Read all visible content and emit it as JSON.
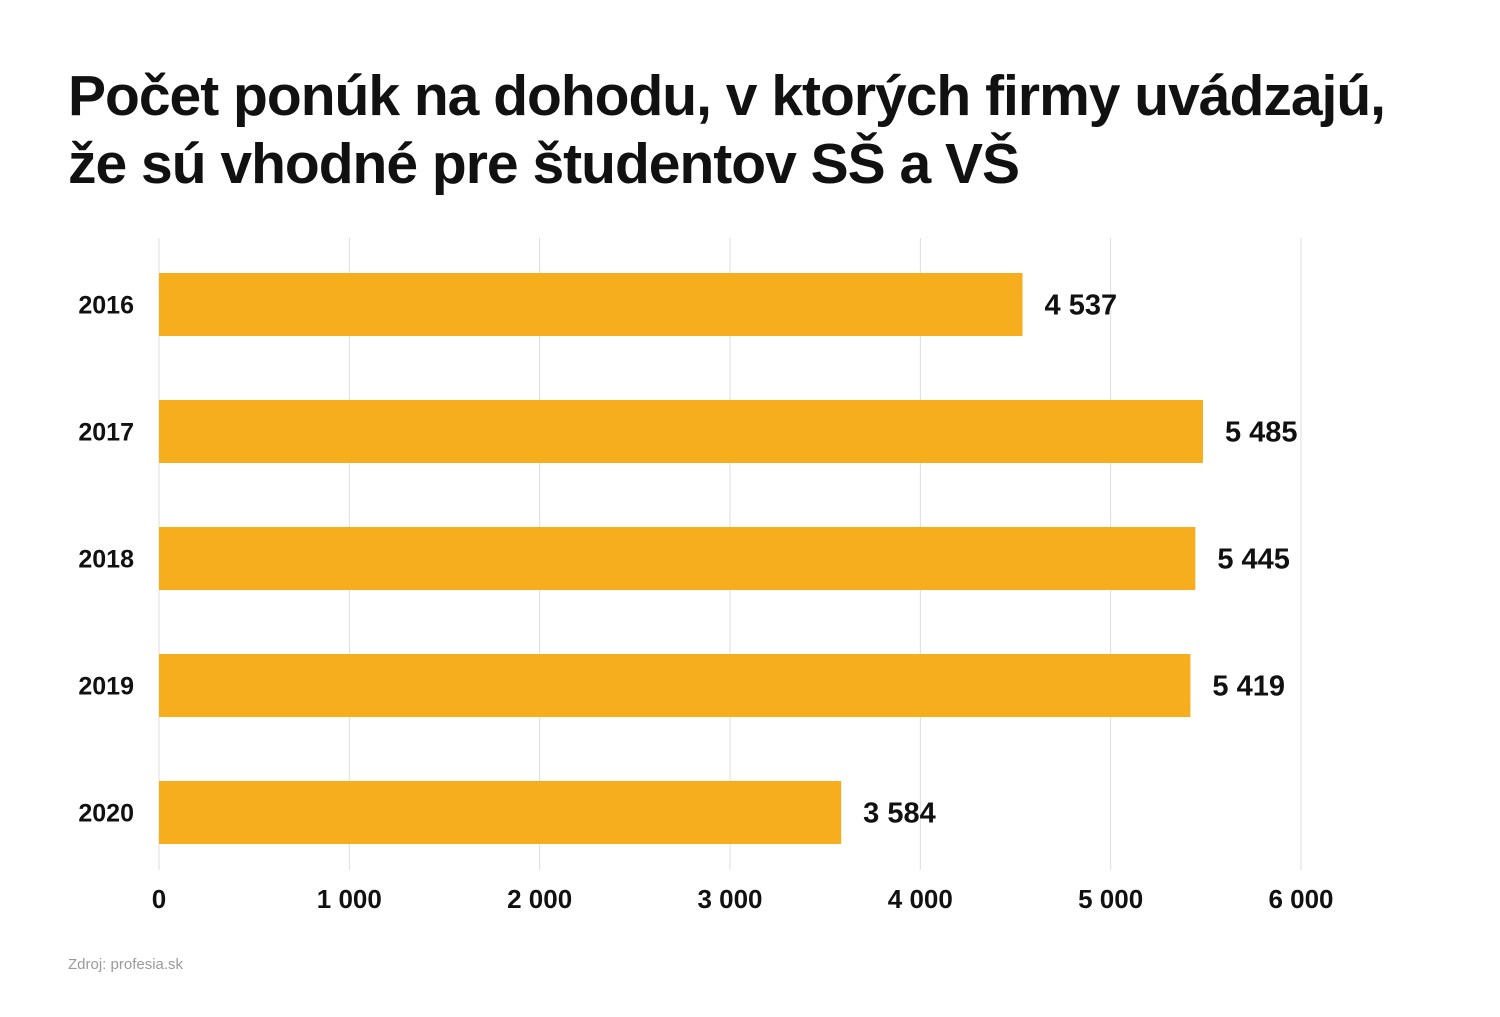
{
  "chart_data": {
    "type": "bar",
    "orientation": "horizontal",
    "title_lines": [
      "Počet ponúk na dohodu, v ktorých firmy uvádzajú,",
      "že sú vhodné pre študentov SŠ a VŠ"
    ],
    "categories": [
      "2016",
      "2017",
      "2018",
      "2019",
      "2020"
    ],
    "values": [
      4537,
      5485,
      5445,
      5419,
      3584
    ],
    "value_labels": [
      "4 537",
      "5 485",
      "5 445",
      "5 419",
      "3 584"
    ],
    "xlim": [
      0,
      6000
    ],
    "x_ticks": [
      0,
      1000,
      2000,
      3000,
      4000,
      5000,
      6000
    ],
    "x_tick_labels": [
      "0",
      "1 000",
      "2 000",
      "3 000",
      "4 000",
      "5 000",
      "6 000"
    ],
    "grid": "vertical",
    "bar_color": "#F7AE1E",
    "gridline_color": "#dddddd"
  },
  "source": "Zdroj: profesia.sk"
}
